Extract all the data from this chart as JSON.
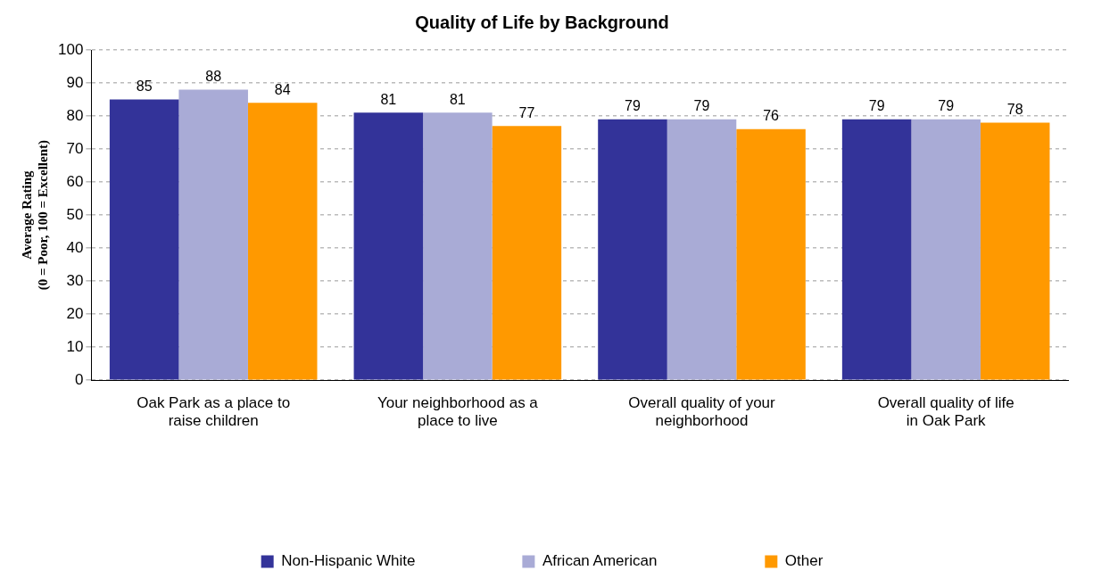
{
  "chart_data": {
    "type": "bar",
    "title": "Quality of Life by Background",
    "ylabel": "Average Rating\n(0 = Poor, 100 = Excellent)",
    "categories": [
      "Oak Park as a place to raise children",
      "Your neighborhood as a place to live",
      "Overall quality of your neighborhood",
      "Overall quality of life in Oak Park"
    ],
    "series": [
      {
        "name": "Non-Hispanic White",
        "color": "#333399",
        "values": [
          85,
          81,
          79,
          79
        ]
      },
      {
        "name": "African American",
        "color": "#a9abd6",
        "values": [
          88,
          81,
          79,
          79
        ]
      },
      {
        "name": "Other",
        "color": "#ff9900",
        "values": [
          84,
          77,
          76,
          78
        ]
      }
    ],
    "ylim": [
      0,
      100
    ],
    "yticks": [
      0,
      10,
      20,
      30,
      40,
      50,
      60,
      70,
      80,
      90,
      100
    ],
    "grid": "y",
    "legend": "bottom",
    "data_labels": true
  }
}
